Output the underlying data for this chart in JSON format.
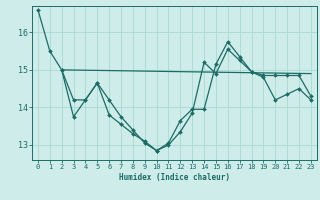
{
  "background_color": "#ceecea",
  "grid_color": "#a8d8d5",
  "line_color": "#1d6b65",
  "xlabel": "Humidex (Indice chaleur)",
  "xlim": [
    -0.5,
    23.5
  ],
  "ylim": [
    12.6,
    16.7
  ],
  "yticks": [
    13,
    14,
    15,
    16
  ],
  "xticks": [
    0,
    1,
    2,
    3,
    4,
    5,
    6,
    7,
    8,
    9,
    10,
    11,
    12,
    13,
    14,
    15,
    16,
    17,
    18,
    19,
    20,
    21,
    22,
    23
  ],
  "series1_x": [
    0,
    1,
    2,
    3,
    4,
    5,
    6,
    7,
    8,
    9,
    10,
    11,
    12,
    13,
    14,
    15,
    16,
    17,
    18,
    19,
    20,
    21,
    22,
    23
  ],
  "series1_y": [
    16.6,
    15.5,
    15.0,
    14.2,
    14.2,
    14.65,
    14.2,
    13.75,
    13.4,
    13.05,
    12.85,
    13.0,
    13.35,
    13.85,
    15.2,
    14.9,
    15.55,
    15.25,
    14.95,
    14.85,
    14.85,
    14.85,
    14.85,
    14.3
  ],
  "series2_x": [
    2,
    3,
    4,
    5,
    6,
    7,
    8,
    9,
    10,
    11,
    12,
    13,
    14,
    15,
    16,
    17,
    18,
    19,
    20,
    21,
    22,
    23
  ],
  "series2_y": [
    15.0,
    13.75,
    14.2,
    14.65,
    13.8,
    13.55,
    13.3,
    13.1,
    12.85,
    13.05,
    13.65,
    13.95,
    13.95,
    15.15,
    15.75,
    15.35,
    14.95,
    14.8,
    14.2,
    14.35,
    14.5,
    14.2
  ],
  "series3_x": [
    2,
    23
  ],
  "series3_y": [
    15.0,
    14.9
  ]
}
